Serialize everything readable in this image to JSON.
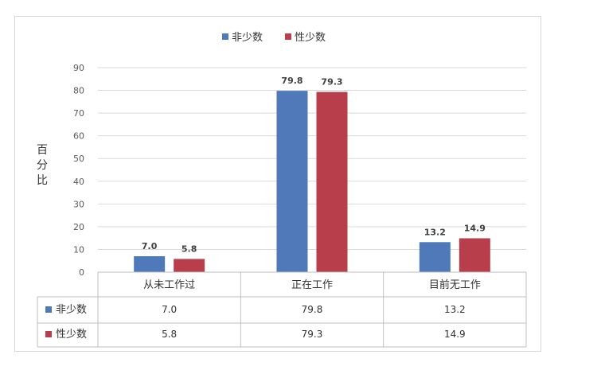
{
  "chart_data": {
    "type": "bar",
    "categories": [
      "从未工作过",
      "正在工作",
      "目前无工作"
    ],
    "series": [
      {
        "name": "非少数",
        "values": [
          7.0,
          79.8,
          13.2
        ],
        "color": "#4f79b9"
      },
      {
        "name": "性少数",
        "values": [
          5.8,
          79.3,
          14.9
        ],
        "color": "#b83e4b"
      }
    ],
    "value_labels": [
      [
        "7.0",
        "79.8",
        "13.2"
      ],
      [
        "5.8",
        "79.3",
        "14.9"
      ]
    ],
    "ylabel": "百分比",
    "ylim": [
      0,
      90
    ],
    "yticks": [
      "0",
      "10",
      "20",
      "30",
      "40",
      "50",
      "60",
      "70",
      "80",
      "90"
    ],
    "grid": true,
    "legend_position": "top-center",
    "data_table": true
  }
}
